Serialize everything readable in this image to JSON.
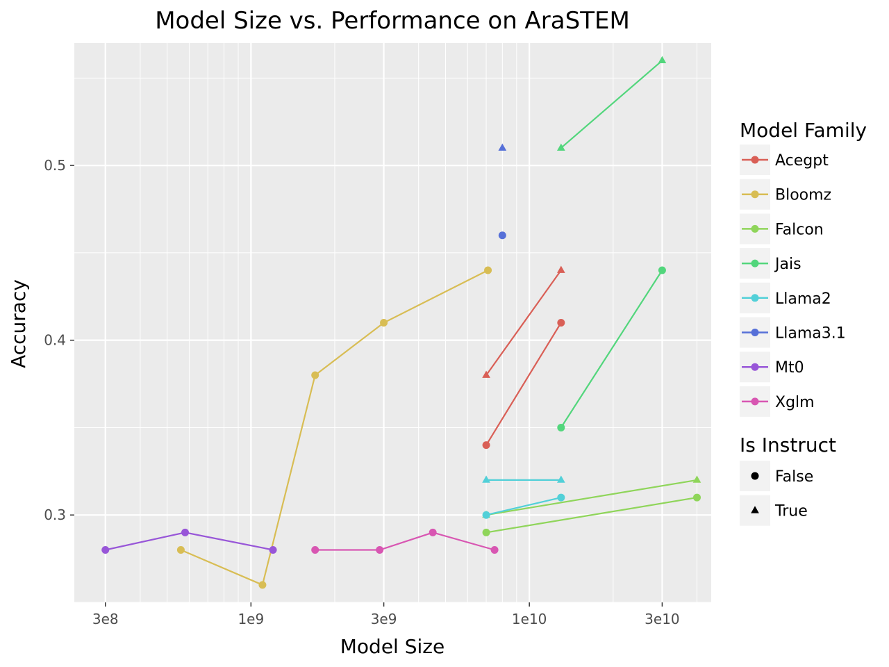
{
  "chart_data": {
    "type": "scatter",
    "title": "Model Size vs. Performance on AraSTEM",
    "xlabel": "Model Size",
    "ylabel": "Accuracy",
    "x_scale": "log10",
    "xlim": [
      232000000,
      45000000000
    ],
    "ylim": [
      0.25,
      0.57
    ],
    "x_ticks": [
      {
        "value": 300000000,
        "label": "3e8"
      },
      {
        "value": 1000000000,
        "label": "1e9"
      },
      {
        "value": 3000000000,
        "label": "3e9"
      },
      {
        "value": 10000000000,
        "label": "1e10"
      },
      {
        "value": 30000000000,
        "label": "3e10"
      }
    ],
    "y_ticks": [
      {
        "value": 0.3,
        "label": "0.3"
      },
      {
        "value": 0.4,
        "label": "0.4"
      },
      {
        "value": 0.5,
        "label": "0.5"
      }
    ],
    "legend": {
      "position": "right",
      "color_title": "Model Family",
      "shape_title": "Is Instruct",
      "shapes": [
        {
          "label": "False",
          "marker": "circle"
        },
        {
          "label": "True",
          "marker": "triangle"
        }
      ]
    },
    "series": [
      {
        "name": "Acegpt",
        "color": "#d95f56",
        "lines": [
          {
            "instruct": false,
            "points": [
              [
                7000000000,
                0.34
              ],
              [
                13000000000,
                0.41
              ]
            ]
          },
          {
            "instruct": true,
            "points": [
              [
                7000000000,
                0.38
              ],
              [
                13000000000,
                0.44
              ]
            ]
          }
        ]
      },
      {
        "name": "Bloomz",
        "color": "#d8bd54",
        "lines": [
          {
            "instruct": false,
            "points": [
              [
                560000000,
                0.28
              ],
              [
                1100000000,
                0.26
              ],
              [
                1700000000,
                0.38
              ],
              [
                3000000000,
                0.41
              ],
              [
                7100000000,
                0.44
              ]
            ]
          }
        ]
      },
      {
        "name": "Falcon",
        "color": "#8fd55a",
        "lines": [
          {
            "instruct": false,
            "points": [
              [
                7000000000,
                0.29
              ],
              [
                40000000000,
                0.31
              ]
            ]
          },
          {
            "instruct": true,
            "points": [
              [
                7000000000,
                0.3
              ],
              [
                40000000000,
                0.32
              ]
            ]
          }
        ]
      },
      {
        "name": "Jais",
        "color": "#52d67c",
        "lines": [
          {
            "instruct": false,
            "points": [
              [
                13000000000,
                0.35
              ],
              [
                30000000000,
                0.44
              ]
            ]
          },
          {
            "instruct": true,
            "points": [
              [
                13000000000,
                0.51
              ],
              [
                30000000000,
                0.56
              ]
            ]
          }
        ]
      },
      {
        "name": "Llama2",
        "color": "#52d0d8",
        "lines": [
          {
            "instruct": false,
            "points": [
              [
                7000000000,
                0.3
              ],
              [
                13000000000,
                0.31
              ]
            ]
          },
          {
            "instruct": true,
            "points": [
              [
                7000000000,
                0.32
              ],
              [
                13000000000,
                0.32
              ]
            ]
          }
        ]
      },
      {
        "name": "Llama3.1",
        "color": "#5670d8",
        "lines": [
          {
            "instruct": false,
            "points": [
              [
                8000000000,
                0.46
              ]
            ]
          },
          {
            "instruct": true,
            "points": [
              [
                8000000000,
                0.51
              ]
            ]
          }
        ]
      },
      {
        "name": "Mt0",
        "color": "#9856d8",
        "lines": [
          {
            "instruct": false,
            "points": [
              [
                300000000,
                0.28
              ],
              [
                580000000,
                0.29
              ],
              [
                1200000000,
                0.28
              ]
            ]
          }
        ]
      },
      {
        "name": "Xglm",
        "color": "#d856b2",
        "lines": [
          {
            "instruct": false,
            "points": [
              [
                1700000000,
                0.28
              ],
              [
                2900000000,
                0.28
              ],
              [
                4500000000,
                0.29
              ],
              [
                7500000000,
                0.28
              ]
            ]
          }
        ]
      }
    ]
  }
}
